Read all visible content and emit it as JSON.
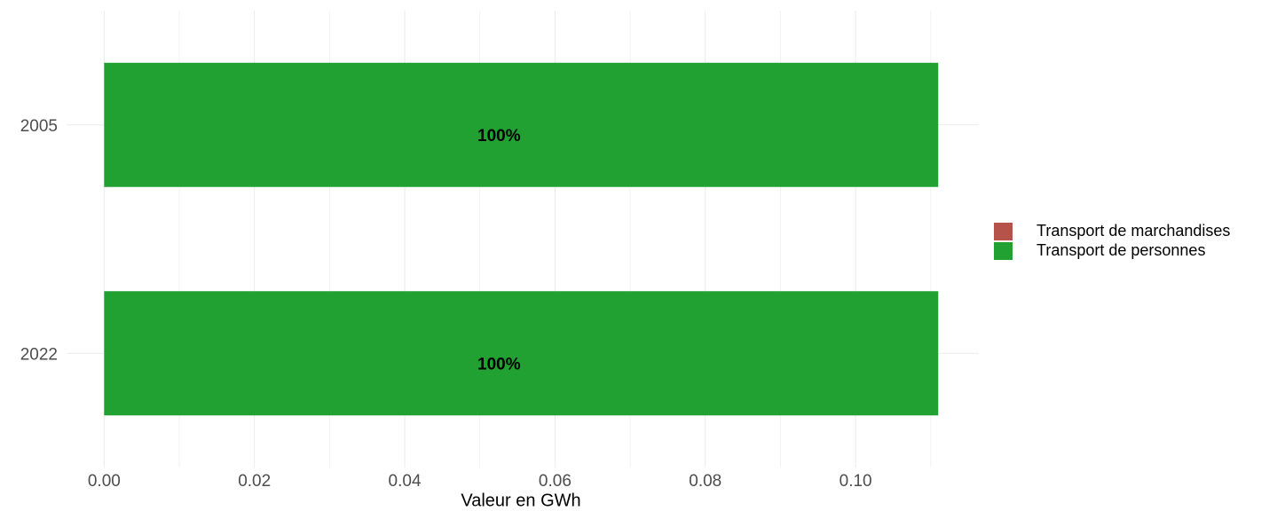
{
  "chart_data": {
    "type": "bar",
    "orientation": "horizontal",
    "stacked": true,
    "x_label": "Valeur en GWh",
    "categories": [
      "2005",
      "2022"
    ],
    "series": [
      {
        "name": "Transport de marchandises",
        "color": "#b5524a",
        "values": [
          0,
          0
        ]
      },
      {
        "name": "Transport de personnes",
        "color": "#21a132",
        "values": [
          0.111,
          0.111
        ],
        "value_labels": [
          "100%",
          "100%"
        ]
      }
    ],
    "xlim": [
      -0.005,
      0.1164
    ],
    "xticks": [
      {
        "value": 0,
        "label": "0.00"
      },
      {
        "value": 0.02,
        "label": "0.02"
      },
      {
        "value": 0.04,
        "label": "0.04"
      },
      {
        "value": 0.06,
        "label": "0.06"
      },
      {
        "value": 0.08,
        "label": "0.08"
      },
      {
        "value": 0.1,
        "label": "0.10"
      }
    ],
    "xminorticks": [
      0.01,
      0.03,
      0.05,
      0.07,
      0.09,
      0.11
    ],
    "grid": true,
    "legend": "right"
  }
}
